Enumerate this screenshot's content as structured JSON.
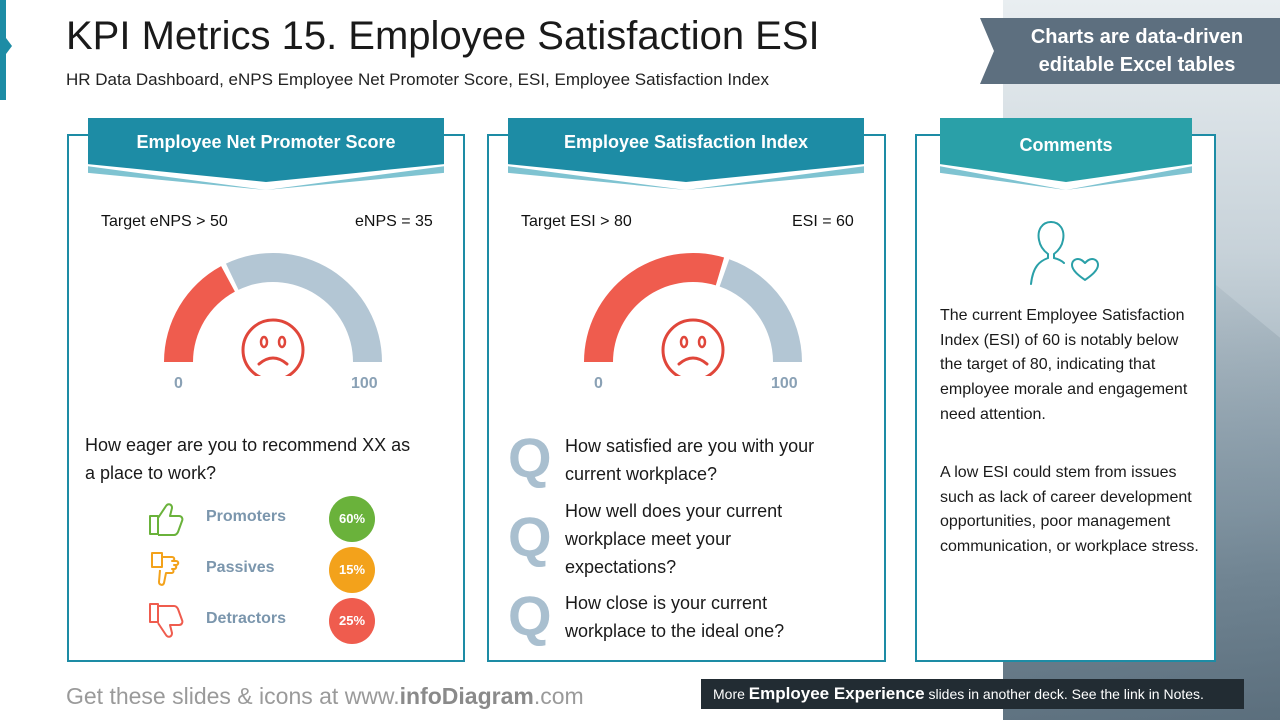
{
  "header": {
    "title": "KPI Metrics 15. Employee Satisfaction ESI",
    "subtitle": "HR Data Dashboard, eNPS Employee Net Promoter Score, ESI, Employee Satisfaction Index",
    "banner_line1": "Charts are data-driven",
    "banner_line2": "editable Excel tables"
  },
  "enps_panel": {
    "heading": "Employee Net Promoter Score",
    "target": "Target eNPS > 50",
    "value_text": "eNPS = 35",
    "value": 35,
    "scale_min": "0",
    "scale_max": "100",
    "question_line1": "How eager are you to recommend XX as",
    "question_line2": "a place to work?",
    "categories": [
      {
        "label": "Promoters",
        "badge": "60%",
        "color": "#6ab23b",
        "icon": "thumbs-up-icon"
      },
      {
        "label": "Passives",
        "badge": "15%",
        "color": "#f3a21b",
        "icon": "hand-sideways-icon"
      },
      {
        "label": "Detractors",
        "badge": "25%",
        "color": "#ef5c4e",
        "icon": "thumbs-down-icon"
      }
    ]
  },
  "esi_panel": {
    "heading": "Employee Satisfaction Index",
    "target": "Target ESI > 80",
    "value_text": "ESI = 60",
    "value": 60,
    "scale_min": "0",
    "scale_max": "100",
    "q_letter": "Q",
    "questions": [
      {
        "line1": "How satisfied are you with your",
        "line2": "current workplace?"
      },
      {
        "line1": "How well does your current",
        "line2": "workplace meet your",
        "line3": "expectations?"
      },
      {
        "line1": "How close is your current",
        "line2": "workplace to the ideal one?"
      }
    ]
  },
  "comments_panel": {
    "heading": "Comments",
    "icon": "person-heart-icon",
    "paragraph1": "The current Employee Satisfaction Index (ESI) of 60 is notably below the target of 80, indicating that employee morale and engagement need attention.",
    "paragraph2": "A low ESI could stem from issues such as lack of career development opportunities, poor management communication, or workplace stress."
  },
  "footer": {
    "left_prefix": "Get these slides & icons at www.",
    "left_brand": "infoDiagram",
    "left_suffix": ".com",
    "right_prefix": "More ",
    "right_bold": "Employee Experience",
    "right_suffix": " slides in another deck. See the link in Notes."
  },
  "colors": {
    "primary": "#1d8ca5",
    "gauge_fill": "#ef5c4e",
    "gauge_track": "#b3c6d4",
    "face": "#e0463a"
  }
}
